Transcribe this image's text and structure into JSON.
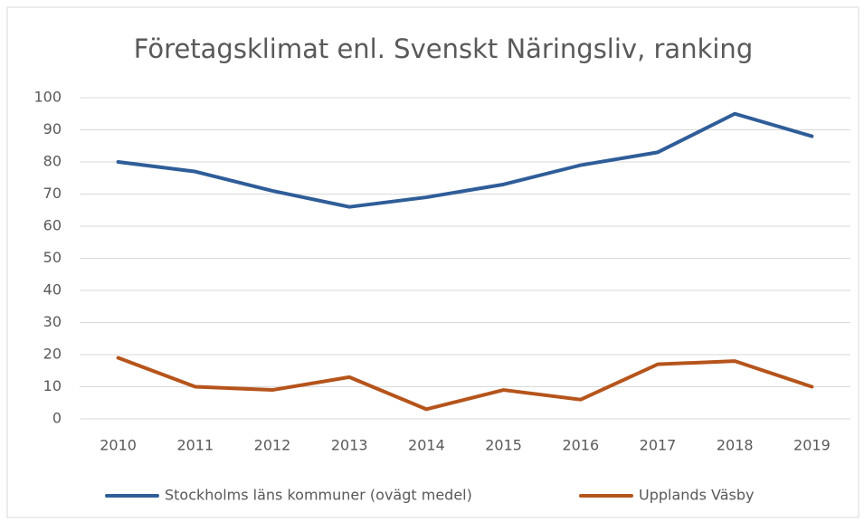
{
  "chart_data": {
    "type": "line",
    "title": "Företagsklimat enl. Svenskt Näringsliv, ranking",
    "categories": [
      "2010",
      "2011",
      "2012",
      "2013",
      "2014",
      "2015",
      "2016",
      "2017",
      "2018",
      "2019"
    ],
    "series": [
      {
        "name": "Stockholms läns kommuner (ovägt medel)",
        "color": "#2f5d98",
        "values": [
          80,
          77,
          71,
          66,
          69,
          73,
          79,
          83,
          95,
          88
        ]
      },
      {
        "name": "Upplands Väsby",
        "color": "#b5541b",
        "values": [
          19,
          10,
          9,
          13,
          3,
          9,
          6,
          17,
          18,
          10
        ]
      }
    ],
    "ylim": [
      0,
      100
    ],
    "yticks": [
      0,
      10,
      20,
      30,
      40,
      50,
      60,
      70,
      80,
      90,
      100
    ],
    "grid": true,
    "legend": "bottom"
  }
}
